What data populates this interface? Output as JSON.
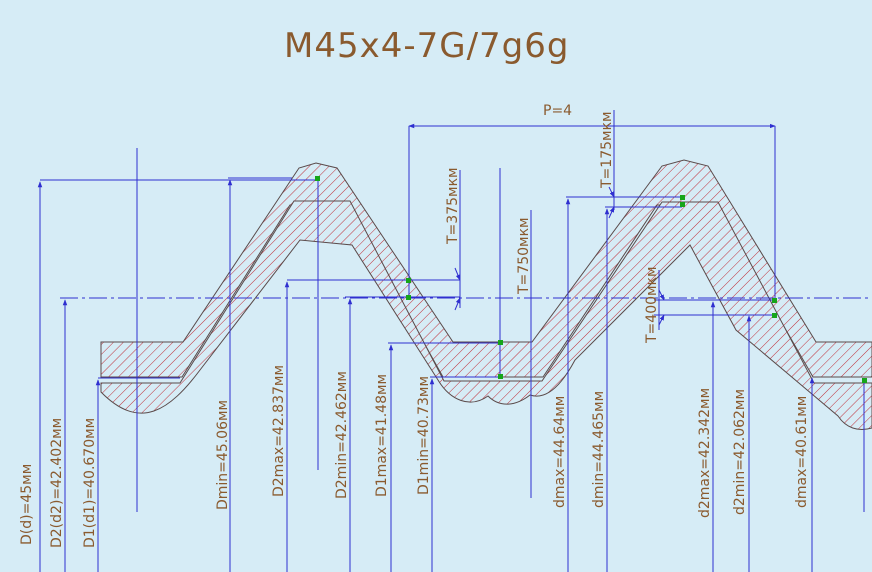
{
  "title": "M45x4-7G/7g6g",
  "pitch_label": "P=4",
  "tolerance_labels": [
    "T=375мкм",
    "T=750мкм",
    "T=175мкм",
    "T=400мкм"
  ],
  "dimension_labels": [
    "D(d)=45мм",
    "D2(d2)=42.402мм",
    "D1(d1)=40.670мм",
    "Dmin=45.06мм",
    "D2max=42.837мм",
    "D2min=42.462мм",
    "D1max=41.48мм",
    "D1min=40.73мм",
    "dmax=44.64мм",
    "dmin=44.465мм",
    "d2max=42.342мм",
    "d2min=42.062мм",
    "dmax=40.61мм"
  ],
  "colors": {
    "background": "#d6ecf6",
    "dimension_lines": "#2f2fd0",
    "hatch": "#c0303a",
    "text": "#8a5a2e",
    "markers": "#16a51a"
  }
}
